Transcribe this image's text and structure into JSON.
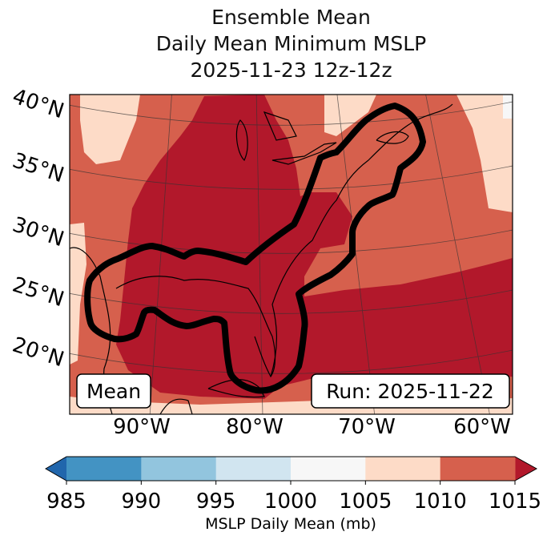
{
  "title": {
    "line1": "Ensemble Mean",
    "line2": "Daily Mean Minimum MSLP",
    "line3": "2025-11-23 12z-12z"
  },
  "chart_data": {
    "type": "heatmap",
    "subtype": "filled-contour map",
    "variable": "MSLP Daily Mean",
    "units": "mb",
    "lat_labels": [
      "40°N",
      "35°N",
      "30°N",
      "25°N",
      "20°N"
    ],
    "lon_labels": [
      "90°W",
      "80°W",
      "70°W",
      "60°W"
    ],
    "levels": [
      985,
      990,
      995,
      1000,
      1005,
      1010,
      1015
    ],
    "level_labels": [
      "985",
      "990",
      "995",
      "1000",
      "1005",
      "1010",
      "1015"
    ],
    "colors": {
      "under": "#2166ac",
      "bins": [
        "#4393c3",
        "#92c5de",
        "#d1e5f0",
        "#f7f7f7",
        "#fddbc7",
        "#d6604d"
      ],
      "over": "#b2182b"
    },
    "extend": "both",
    "colorbar_label": "MSLP Daily Mean (mb)",
    "contour_note": "thick black outline around the region of lowest ensemble-mean pressure (Gulf of Mexico to the US East Coast and the Canadian Maritimes)",
    "annotations": {
      "left": "Mean",
      "right": "Run: 2025-11-22"
    }
  }
}
